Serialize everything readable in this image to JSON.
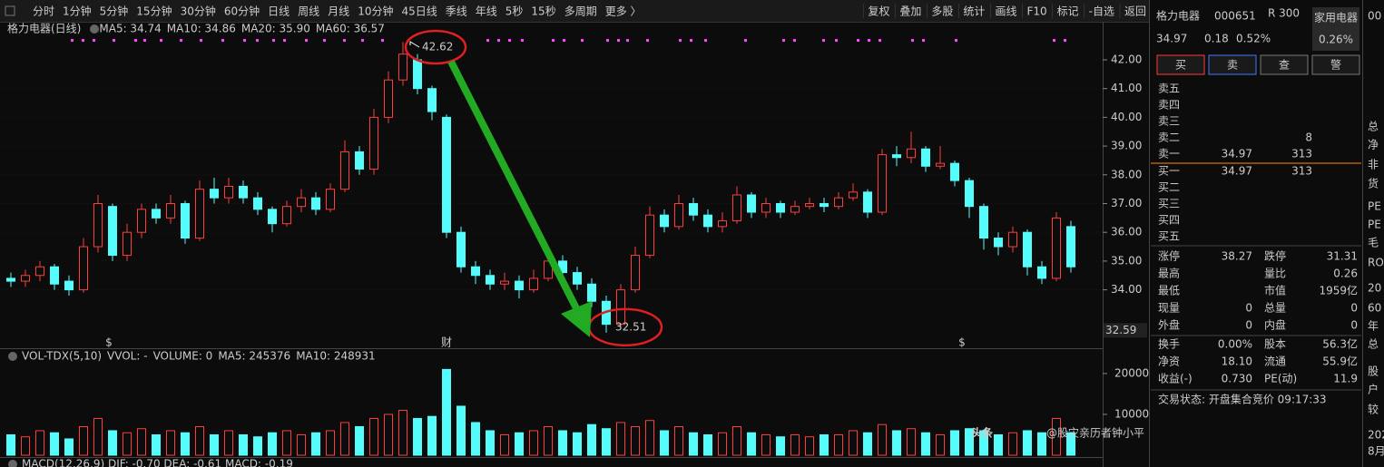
{
  "toolbar": {
    "periods": [
      {
        "label": "分时"
      },
      {
        "label": "1分钟"
      },
      {
        "label": "5分钟"
      },
      {
        "label": "15分钟"
      },
      {
        "label": "30分钟"
      },
      {
        "label": "60分钟"
      },
      {
        "label": "日线",
        "active": true
      },
      {
        "label": "周线"
      },
      {
        "label": "月线"
      },
      {
        "label": "10分钟"
      },
      {
        "label": "45日线"
      },
      {
        "label": "季线"
      },
      {
        "label": "年线"
      },
      {
        "label": "5秒"
      },
      {
        "label": "15秒"
      },
      {
        "label": "多周期"
      },
      {
        "label": "更多 〉"
      }
    ],
    "tools": [
      "复权",
      "叠加",
      "多股",
      "统计",
      "画线",
      "F10",
      "标记",
      "-自选",
      "返回"
    ]
  },
  "chart_header": {
    "name": "格力电器(日线)",
    "items": [
      {
        "text": "MA5: 34.74",
        "color": "#ffffff"
      },
      {
        "text": "MA10: 34.86",
        "color": "#ffff33"
      },
      {
        "text": "MA20: 35.90",
        "color": "#ff44ff"
      },
      {
        "text": "MA60: 36.57",
        "color": "#33dd33"
      }
    ]
  },
  "volume_header": {
    "items": [
      {
        "text": "VOL-TDX(5,10)",
        "color": "#dddddd"
      },
      {
        "text": "VVOL: -",
        "color": "#dddddd"
      },
      {
        "text": "VOLUME: 0",
        "color": "#ffff33"
      },
      {
        "text": "MA5: 245376",
        "color": "#ffff33"
      },
      {
        "text": "MA10: 248931",
        "color": "#ff44ff"
      }
    ]
  },
  "macd_header": "MACD(12,26,9)  DIF: -0.70  DEA: -0.61  MACD: -0.19",
  "chart_data": [
    {
      "type": "candlestick",
      "up_color": "#ff3b3b",
      "down_color": "#54fcfc",
      "open": [
        34.4,
        34.3,
        34.5,
        34.8,
        34.3,
        34.0,
        35.5,
        36.9,
        35.2,
        36.0,
        36.8,
        36.5,
        37.0,
        35.8,
        37.5,
        37.2,
        37.6,
        37.2,
        36.8,
        36.3,
        36.9,
        37.2,
        36.8,
        37.5,
        38.8,
        38.2,
        40.0,
        41.3,
        42.0,
        41.0,
        40.0,
        36.0,
        34.8,
        34.5,
        34.2,
        34.3,
        34.0,
        34.4,
        35.0,
        34.6,
        34.2,
        33.6,
        32.8,
        34.0,
        35.2,
        36.6,
        36.2,
        37.0,
        36.6,
        36.2,
        36.4,
        37.3,
        36.7,
        37.0,
        36.7,
        36.9,
        37.0,
        36.9,
        37.2,
        37.4,
        36.7,
        38.7,
        38.6,
        38.9,
        38.3,
        38.4,
        37.8,
        36.9,
        35.8,
        35.5,
        36.0,
        34.8,
        34.4,
        36.2
      ],
      "high": [
        34.6,
        34.7,
        35.0,
        34.9,
        34.5,
        35.8,
        37.3,
        37.0,
        36.3,
        37.0,
        37.0,
        37.3,
        37.1,
        37.8,
        37.9,
        37.9,
        37.8,
        37.4,
        36.9,
        37.1,
        37.5,
        37.4,
        37.7,
        39.2,
        39.0,
        40.3,
        41.6,
        42.62,
        42.2,
        41.1,
        40.1,
        36.2,
        35.0,
        34.7,
        34.6,
        34.5,
        34.7,
        35.3,
        35.2,
        34.8,
        34.4,
        33.8,
        34.2,
        35.5,
        36.9,
        36.8,
        37.3,
        37.2,
        36.8,
        36.7,
        37.6,
        37.4,
        37.2,
        37.1,
        37.1,
        37.2,
        37.2,
        37.4,
        37.7,
        37.5,
        38.9,
        39.0,
        39.5,
        39.0,
        39.0,
        38.5,
        37.9,
        37.0,
        36.0,
        36.2,
        36.1,
        35.0,
        36.7,
        36.4
      ],
      "low": [
        34.1,
        34.1,
        34.3,
        34.0,
        33.8,
        33.9,
        35.3,
        35.0,
        35.0,
        35.8,
        36.3,
        36.3,
        35.6,
        35.7,
        37.0,
        37.0,
        37.0,
        36.6,
        36.0,
        36.2,
        36.7,
        36.6,
        36.7,
        37.4,
        38.0,
        38.0,
        39.8,
        41.1,
        40.8,
        39.9,
        35.8,
        34.6,
        34.2,
        34.0,
        34.0,
        33.7,
        33.9,
        34.3,
        34.4,
        34.0,
        33.4,
        32.51,
        32.7,
        33.9,
        35.1,
        36.0,
        36.1,
        36.4,
        36.0,
        36.0,
        36.3,
        36.5,
        36.5,
        36.5,
        36.6,
        36.8,
        36.7,
        36.8,
        37.1,
        36.5,
        36.6,
        38.3,
        38.4,
        38.1,
        38.2,
        37.6,
        36.5,
        35.4,
        35.2,
        35.3,
        34.5,
        34.2,
        34.3,
        34.6
      ],
      "close": [
        34.3,
        34.5,
        34.8,
        34.2,
        34.0,
        35.5,
        37.0,
        35.2,
        36.0,
        36.8,
        36.5,
        37.0,
        35.8,
        37.5,
        37.2,
        37.6,
        37.2,
        36.8,
        36.3,
        36.9,
        37.2,
        36.8,
        37.5,
        38.8,
        38.2,
        40.0,
        41.3,
        42.2,
        41.0,
        40.2,
        36.0,
        34.8,
        34.5,
        34.2,
        34.3,
        34.0,
        34.4,
        35.0,
        34.6,
        34.2,
        33.6,
        32.8,
        34.0,
        35.2,
        36.6,
        36.2,
        37.0,
        36.6,
        36.2,
        36.4,
        37.3,
        36.7,
        37.0,
        36.7,
        36.9,
        37.0,
        36.9,
        37.2,
        37.4,
        36.7,
        38.7,
        38.6,
        38.9,
        38.3,
        38.4,
        37.8,
        36.9,
        35.8,
        35.5,
        36.0,
        34.8,
        34.4,
        36.5,
        34.8
      ],
      "ylim": [
        32.0,
        42.82
      ],
      "yticks": [
        {
          "value": 34,
          "label": "34.00"
        },
        {
          "value": 35,
          "label": "35.00"
        },
        {
          "value": 36,
          "label": "36.00"
        },
        {
          "value": 37,
          "label": "37.00"
        },
        {
          "value": 38,
          "label": "38.00"
        },
        {
          "value": 39,
          "label": "39.00"
        },
        {
          "value": 40,
          "label": "40.00"
        },
        {
          "value": 41,
          "label": "41.00"
        },
        {
          "value": 42,
          "label": "42.00"
        }
      ],
      "grid": true,
      "cursor_price": 32.59,
      "event_markers": [
        {
          "text": "$",
          "color": "#ff3b3b"
        },
        {
          "text": "财",
          "color": "#dddddd"
        },
        {
          "text": "$",
          "color": "#ff3b3b"
        }
      ]
    },
    {
      "type": "volume",
      "values": [
        5000,
        4500,
        6000,
        5500,
        4000,
        7000,
        9000,
        6000,
        5500,
        6500,
        5000,
        6000,
        5500,
        7000,
        5000,
        6000,
        5000,
        4500,
        5500,
        6000,
        5000,
        5500,
        6000,
        8000,
        7000,
        9000,
        10000,
        11000,
        9000,
        9500,
        21000,
        12000,
        8000,
        6000,
        5000,
        5500,
        6000,
        7000,
        6000,
        5500,
        7500,
        6500,
        8000,
        7000,
        8500,
        6000,
        7000,
        5500,
        5000,
        5500,
        7000,
        5500,
        5000,
        4500,
        5000,
        4500,
        5000,
        5000,
        6000,
        5500,
        7500,
        6000,
        6500,
        5500,
        5000,
        6000,
        6500,
        6000,
        5000,
        5500,
        6000,
        5500,
        9000,
        5500
      ],
      "ylim": [
        0,
        22200
      ],
      "yticks": [
        10000,
        20000
      ]
    }
  ],
  "quote": {
    "name": "格力电器",
    "code": "000651",
    "badge": "R 300",
    "sector": "家用电器",
    "sector_change": "0.26%",
    "price": "34.97",
    "change": "0.18",
    "change_pct": "0.52%",
    "buttons": [
      "买",
      "卖",
      "查",
      "警"
    ],
    "asks": [
      {
        "label": "卖五"
      },
      {
        "label": "卖四"
      },
      {
        "label": "卖三"
      },
      {
        "label": "卖二",
        "volume": "8"
      },
      {
        "label": "卖一",
        "price": "34.97",
        "volume": "313"
      }
    ],
    "bids": [
      {
        "label": "买一",
        "price": "34.97",
        "volume": "313"
      },
      {
        "label": "买二"
      },
      {
        "label": "买三"
      },
      {
        "label": "买四"
      },
      {
        "label": "买五"
      }
    ],
    "stats": [
      [
        {
          "label": "涨停",
          "value": "38.27",
          "color": "#ff3b3b"
        },
        {
          "label": "跌停",
          "value": "31.31",
          "color": "#33dd33"
        }
      ],
      [
        {
          "label": "最高"
        },
        {
          "label": "量比",
          "value": "0.26",
          "color": "#33dd33"
        }
      ],
      [
        {
          "label": "最低"
        },
        {
          "label": "市值",
          "value": "1959亿",
          "color": "#dddddd"
        }
      ],
      [
        {
          "label": "现量",
          "value": "0",
          "color": "#ff3b3b"
        },
        {
          "label": "总量",
          "value": "0",
          "color": "#dddddd"
        }
      ],
      [
        {
          "label": "外盘",
          "value": "0",
          "color": "#ff3b3b"
        },
        {
          "label": "内盘",
          "value": "0",
          "color": "#33dd33"
        }
      ]
    ],
    "stats2": [
      [
        {
          "label": "换手",
          "value": "0.00%"
        },
        {
          "label": "股本",
          "value": "56.3亿"
        }
      ],
      [
        {
          "label": "净资",
          "value": "18.10"
        },
        {
          "label": "流通",
          "value": "55.9亿"
        }
      ],
      [
        {
          "label": "收益(-)",
          "value": "0.730"
        },
        {
          "label": "PE(动)",
          "value": "11.9"
        }
      ]
    ],
    "status": "交易状态: 开盘集合竞价 09:17:33"
  },
  "cut_column": [
    "00",
    "总",
    "净",
    "非",
    "货",
    "PE",
    "PE",
    "毛",
    "RO",
    "20",
    "60",
    "年",
    "总",
    "股",
    "户",
    "较",
    "202",
    "8月"
  ],
  "watermark": {
    "brand": "头条",
    "author": "@股灾亲历者钟小平"
  }
}
